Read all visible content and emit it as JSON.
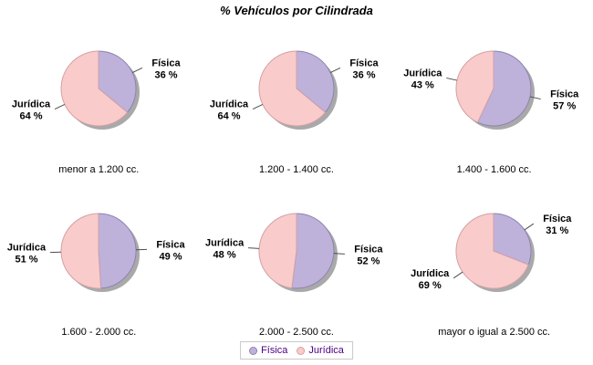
{
  "chart_data": {
    "type": "pie",
    "title": "% Vehículos por Cilindrada",
    "legend": [
      "Física",
      "Jurídica"
    ],
    "legend_position": "bottom",
    "label_format": "{name} / {pct} %",
    "start_angle": "top, clockwise",
    "colors": {
      "Física": {
        "fill": "#BEB2DB",
        "edge": "#8D82B0"
      },
      "Jurídica": {
        "fill": "#F9CBCB",
        "edge": "#D3A0A4"
      }
    },
    "charts": [
      {
        "caption": "menor a 1.200 cc.",
        "slices": [
          {
            "name": "Física",
            "pct": 36
          },
          {
            "name": "Jurídica",
            "pct": 64
          }
        ]
      },
      {
        "caption": "1.200 - 1.400 cc.",
        "slices": [
          {
            "name": "Física",
            "pct": 36
          },
          {
            "name": "Jurídica",
            "pct": 64
          }
        ]
      },
      {
        "caption": "1.400 - 1.600 cc.",
        "slices": [
          {
            "name": "Física",
            "pct": 57
          },
          {
            "name": "Jurídica",
            "pct": 43
          }
        ]
      },
      {
        "caption": "1.600 - 2.000 cc.",
        "slices": [
          {
            "name": "Física",
            "pct": 49
          },
          {
            "name": "Jurídica",
            "pct": 51
          }
        ]
      },
      {
        "caption": "2.000 - 2.500 cc.",
        "slices": [
          {
            "name": "Física",
            "pct": 52
          },
          {
            "name": "Jurídica",
            "pct": 48
          }
        ]
      },
      {
        "caption": "mayor o igual a 2.500 cc.",
        "slices": [
          {
            "name": "Física",
            "pct": 31
          },
          {
            "name": "Jurídica",
            "pct": 69
          }
        ]
      }
    ]
  },
  "style": {
    "background": "#FFFFFF",
    "shadow_color": "#A9A9A9",
    "leader_line_color": "#4D4D4D",
    "label_text_color": "#000000",
    "legend_text_color": "#4B0082",
    "legend_border_color": "#C9C9C9"
  }
}
